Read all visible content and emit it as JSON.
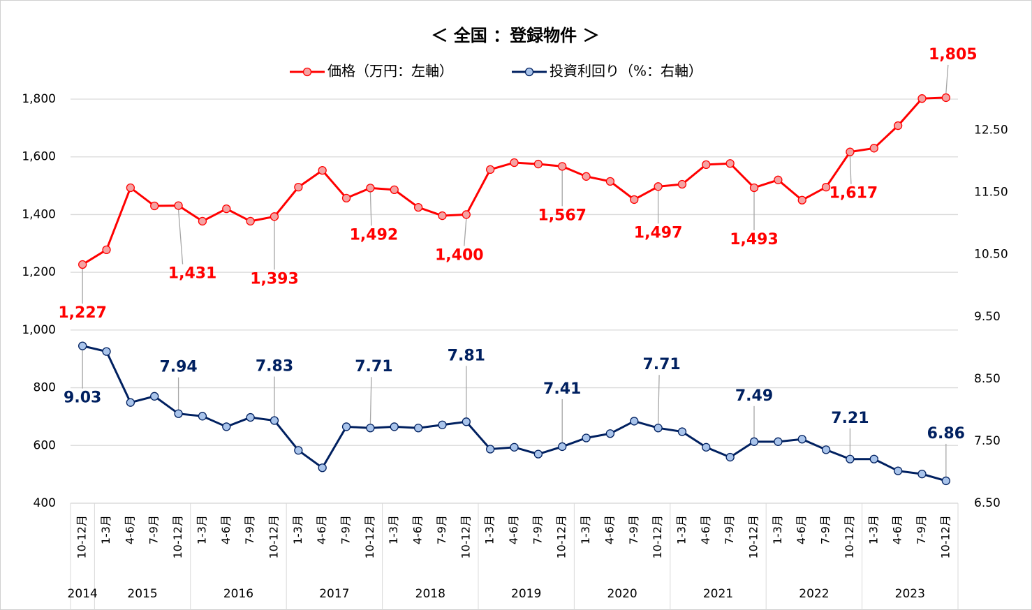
{
  "chart_data": {
    "type": "line",
    "title": "＜ 全国 ：登録物件 ＞",
    "categories": [
      "10-12月",
      "1-3月",
      "4-6月",
      "7-9月",
      "10-12月",
      "1-3月",
      "4-6月",
      "7-9月",
      "10-12月",
      "1-3月",
      "4-6月",
      "7-9月",
      "10-12月",
      "1-3月",
      "4-6月",
      "7-9月",
      "10-12月",
      "1-3月",
      "4-6月",
      "7-9月",
      "10-12月",
      "1-3月",
      "4-6月",
      "7-9月",
      "10-12月",
      "1-3月",
      "4-6月",
      "7-9月",
      "10-12月",
      "1-3月",
      "4-6月",
      "7-9月",
      "10-12月",
      "1-3月",
      "4-6月",
      "7-9月",
      "10-12月"
    ],
    "category_groups": [
      {
        "name": "2014",
        "count": 1
      },
      {
        "name": "2015",
        "count": 4
      },
      {
        "name": "2016",
        "count": 4
      },
      {
        "name": "2017",
        "count": 4
      },
      {
        "name": "2018",
        "count": 4
      },
      {
        "name": "2019",
        "count": 4
      },
      {
        "name": "2020",
        "count": 4
      },
      {
        "name": "2021",
        "count": 4
      },
      {
        "name": "2022",
        "count": 4
      },
      {
        "name": "2023",
        "count": 4
      }
    ],
    "series": [
      {
        "name": "価格（万円：左軸）",
        "color": "#ff0000",
        "marker_color": "#f4a3a3",
        "values": [
          1227,
          1278,
          1493,
          1430,
          1431,
          1377,
          1420,
          1377,
          1393,
          1495,
          1553,
          1457,
          1492,
          1486,
          1425,
          1396,
          1400,
          1556,
          1580,
          1575,
          1567,
          1532,
          1515,
          1452,
          1497,
          1505,
          1573,
          1577,
          1493,
          1520,
          1450,
          1495,
          1617,
          1630,
          1708,
          1802,
          1805
        ],
        "value_labels": [
          "1,227",
          null,
          null,
          null,
          "1,431",
          null,
          null,
          null,
          "1,393",
          null,
          null,
          null,
          "1,492",
          null,
          null,
          null,
          "1,400",
          null,
          null,
          null,
          "1,567",
          null,
          null,
          null,
          "1,497",
          null,
          null,
          null,
          "1,493",
          null,
          null,
          null,
          "1,617",
          null,
          null,
          null,
          "1,805"
        ]
      },
      {
        "name": "投資利回り（%：右軸）",
        "color": "#002060",
        "marker_color": "#a9c4eb",
        "axis": "y2",
        "values": [
          9.03,
          8.94,
          8.12,
          8.22,
          7.94,
          7.9,
          7.73,
          7.88,
          7.83,
          7.35,
          7.07,
          7.73,
          7.71,
          7.73,
          7.71,
          7.76,
          7.81,
          7.37,
          7.4,
          7.29,
          7.41,
          7.55,
          7.62,
          7.82,
          7.71,
          7.65,
          7.4,
          7.24,
          7.49,
          7.49,
          7.53,
          7.36,
          7.21,
          7.21,
          7.02,
          6.97,
          6.86
        ],
        "value_labels": [
          "9.03",
          null,
          null,
          null,
          "7.94",
          null,
          null,
          null,
          "7.83",
          null,
          null,
          null,
          "7.71",
          null,
          null,
          null,
          "7.81",
          null,
          null,
          null,
          "7.41",
          null,
          null,
          null,
          "7.71",
          null,
          null,
          null,
          "7.49",
          null,
          null,
          null,
          "7.21",
          null,
          null,
          null,
          "6.86"
        ]
      }
    ],
    "ylim": [
      400,
      1800
    ],
    "yticks": [
      400,
      600,
      800,
      {
        "value": 1000,
        "label": "1,000"
      },
      {
        "value": 1200,
        "label": "1,200"
      },
      {
        "value": 1400,
        "label": "1,400"
      },
      {
        "value": 1600,
        "label": "1,600"
      },
      {
        "value": 1800,
        "label": "1,800"
      }
    ],
    "y2lim": [
      6.5,
      13
    ],
    "y2ticks": [
      {
        "value": 6.5,
        "label": "6.50"
      },
      {
        "value": 7.5,
        "label": "7.50"
      },
      {
        "value": 8.5,
        "label": "8.50"
      },
      {
        "value": 9.5,
        "label": "9.50"
      },
      {
        "value": 10.5,
        "label": "10.50"
      },
      {
        "value": 11.5,
        "label": "11.50"
      },
      {
        "value": 12.5,
        "label": "12.50"
      }
    ],
    "grid": true
  }
}
